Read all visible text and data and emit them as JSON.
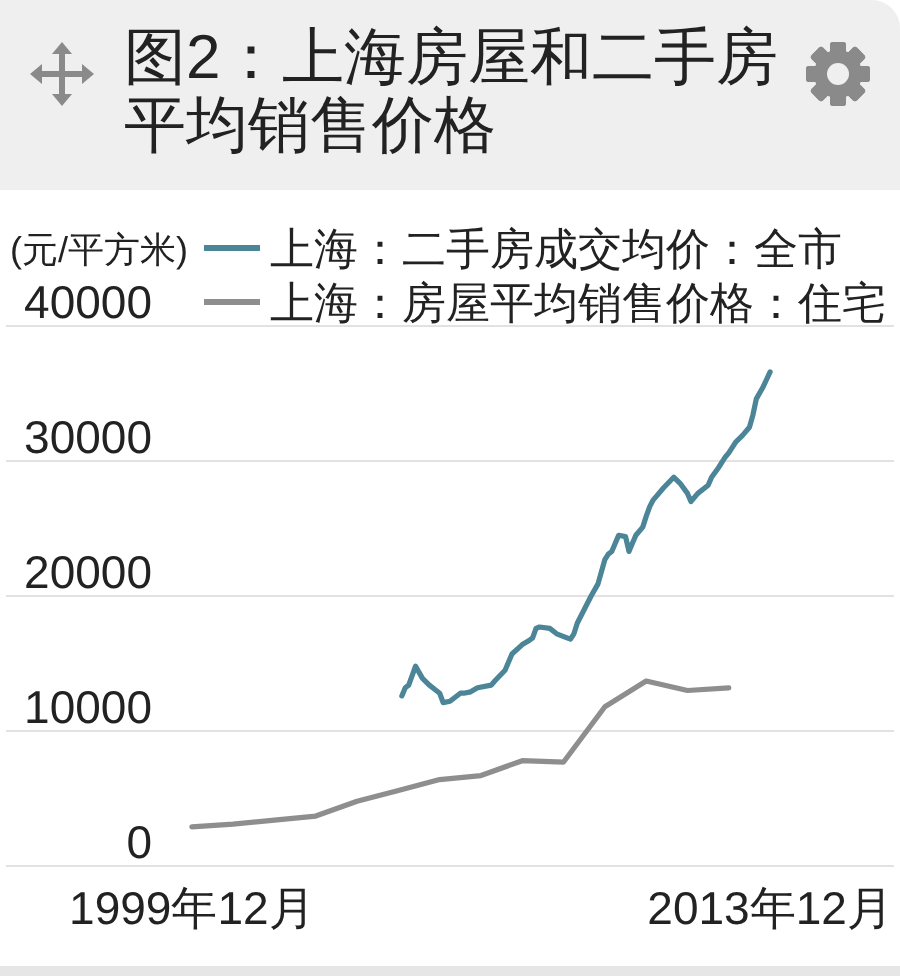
{
  "chart_data": {
    "type": "line",
    "title": "图2：上海房屋和二手房平均销售价格",
    "ylabel": "(元/平方米)",
    "series": [
      {
        "name": "上海：二手房成交均价：全市",
        "color": "#4b8597",
        "x": [
          "2005-01",
          "2005-02",
          "2005-03",
          "2005-05",
          "2005-07",
          "2005-09",
          "2005-11",
          "2005-12",
          "2006-01",
          "2006-03",
          "2006-06",
          "2006-07",
          "2006-09",
          "2006-11",
          "2007-03",
          "2007-04",
          "2007-07",
          "2007-09",
          "2007-12",
          "2008-02",
          "2008-03",
          "2008-04",
          "2008-05",
          "2008-08",
          "2008-10",
          "2009-01",
          "2009-02",
          "2009-03",
          "2009-04",
          "2009-06",
          "2009-08",
          "2009-10",
          "2009-12",
          "2010-01",
          "2010-02",
          "2010-04",
          "2010-06",
          "2010-07",
          "2010-08",
          "2010-09",
          "2010-11",
          "2010-12",
          "2011-01",
          "2011-02",
          "2011-03",
          "2011-05",
          "2011-08",
          "2011-10",
          "2011-12",
          "2012-01",
          "2012-03",
          "2012-06",
          "2012-07",
          "2012-09",
          "2012-11",
          "2012-12",
          "2013-02",
          "2013-04",
          "2013-06",
          "2013-07",
          "2013-08",
          "2013-10",
          "2013-12"
        ],
        "values": [
          12600,
          13200,
          13400,
          14800,
          13900,
          13400,
          13000,
          12800,
          12100,
          12200,
          12800,
          12800,
          12900,
          13200,
          13400,
          13700,
          14500,
          15700,
          16400,
          16700,
          16900,
          17600,
          17700,
          17600,
          17200,
          16900,
          16800,
          17200,
          18000,
          19000,
          20000,
          20900,
          22700,
          23100,
          23300,
          24500,
          24400,
          23300,
          23900,
          24500,
          25100,
          25900,
          26600,
          27100,
          27400,
          28000,
          28800,
          28300,
          27600,
          27000,
          27600,
          28200,
          28800,
          29500,
          30300,
          30600,
          31400,
          31900,
          32500,
          33400,
          34600,
          35500,
          36600
        ]
      },
      {
        "name": "上海：房屋平均销售价格：住宅",
        "color": "#8e8e8e",
        "x": [
          "1999-12",
          "2000-12",
          "2001-12",
          "2002-12",
          "2003-12",
          "2004-12",
          "2005-12",
          "2006-12",
          "2007-12",
          "2008-12",
          "2009-12",
          "2010-12",
          "2011-12",
          "2012-12"
        ],
        "values": [
          2900,
          3100,
          3400,
          3700,
          4800,
          5600,
          6400,
          6700,
          7800,
          7700,
          11800,
          13700,
          13000,
          13200
        ]
      }
    ],
    "xlim": [
      "1995-06",
      "2016-12"
    ],
    "xticks": [
      {
        "value": "1999-12",
        "label": "1999年12月"
      },
      {
        "value": "2013-12",
        "label": "2013年12月"
      }
    ],
    "ylim": [
      0,
      40000
    ],
    "yticks": [
      0,
      10000,
      20000,
      30000,
      40000
    ],
    "grid": "y",
    "legend": "top",
    "line_style": "solid"
  }
}
